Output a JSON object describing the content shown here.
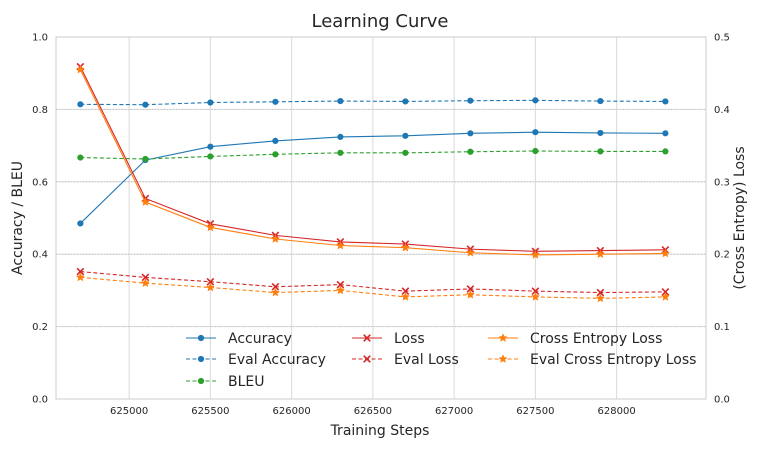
{
  "chart_data": {
    "type": "line",
    "title": "Learning Curve",
    "xlabel": "Training Steps",
    "ylabel_left": "Accuracy / BLEU",
    "ylabel_right": "(Cross Entropy) Loss",
    "xlim": [
      624550,
      628550
    ],
    "ylim_left": [
      0.0,
      1.0
    ],
    "ylim_right": [
      0.0,
      0.5
    ],
    "x_ticks": [
      625000,
      625500,
      626000,
      626500,
      627000,
      627500,
      628000
    ],
    "y_ticks_left": [
      0.0,
      0.2,
      0.4,
      0.6,
      0.8,
      1.0
    ],
    "y_ticks_right": [
      0.0,
      0.1,
      0.2,
      0.3,
      0.4,
      0.5
    ],
    "grid": true,
    "legend_position": "lower-center",
    "x": [
      624700,
      625100,
      625500,
      625900,
      626300,
      626700,
      627100,
      627500,
      627900,
      628300
    ],
    "series": [
      {
        "name": "Accuracy",
        "axis": "left",
        "color": "#1f77b4",
        "dash": "solid",
        "marker": "circle",
        "values": [
          0.485,
          0.66,
          0.697,
          0.713,
          0.724,
          0.727,
          0.734,
          0.737,
          0.735,
          0.734
        ]
      },
      {
        "name": "Eval Accuracy",
        "axis": "left",
        "color": "#1f77b4",
        "dash": "dashed",
        "marker": "circle",
        "values": [
          0.814,
          0.813,
          0.819,
          0.821,
          0.823,
          0.822,
          0.824,
          0.825,
          0.823,
          0.822
        ]
      },
      {
        "name": "BLEU",
        "axis": "left",
        "color": "#2ca02c",
        "dash": "dashed",
        "marker": "circle",
        "values": [
          0.667,
          0.663,
          0.67,
          0.676,
          0.68,
          0.68,
          0.683,
          0.685,
          0.684,
          0.684
        ]
      },
      {
        "name": "Loss",
        "axis": "right",
        "color": "#d62728",
        "dash": "solid",
        "marker": "x",
        "values": [
          0.459,
          0.277,
          0.242,
          0.226,
          0.217,
          0.214,
          0.207,
          0.204,
          0.205,
          0.206
        ]
      },
      {
        "name": "Eval Loss",
        "axis": "right",
        "color": "#d62728",
        "dash": "dashed",
        "marker": "x",
        "values": [
          0.176,
          0.168,
          0.162,
          0.155,
          0.158,
          0.149,
          0.152,
          0.149,
          0.147,
          0.148
        ]
      },
      {
        "name": "Cross Entropy Loss",
        "axis": "right",
        "color": "#ff7f0e",
        "dash": "solid",
        "marker": "star",
        "values": [
          0.455,
          0.272,
          0.237,
          0.221,
          0.212,
          0.209,
          0.202,
          0.199,
          0.2,
          0.201
        ]
      },
      {
        "name": "Eval Cross Entropy Loss",
        "axis": "right",
        "color": "#ff7f0e",
        "dash": "dashed",
        "marker": "star",
        "values": [
          0.168,
          0.16,
          0.154,
          0.147,
          0.15,
          0.141,
          0.144,
          0.141,
          0.139,
          0.141
        ]
      }
    ]
  }
}
